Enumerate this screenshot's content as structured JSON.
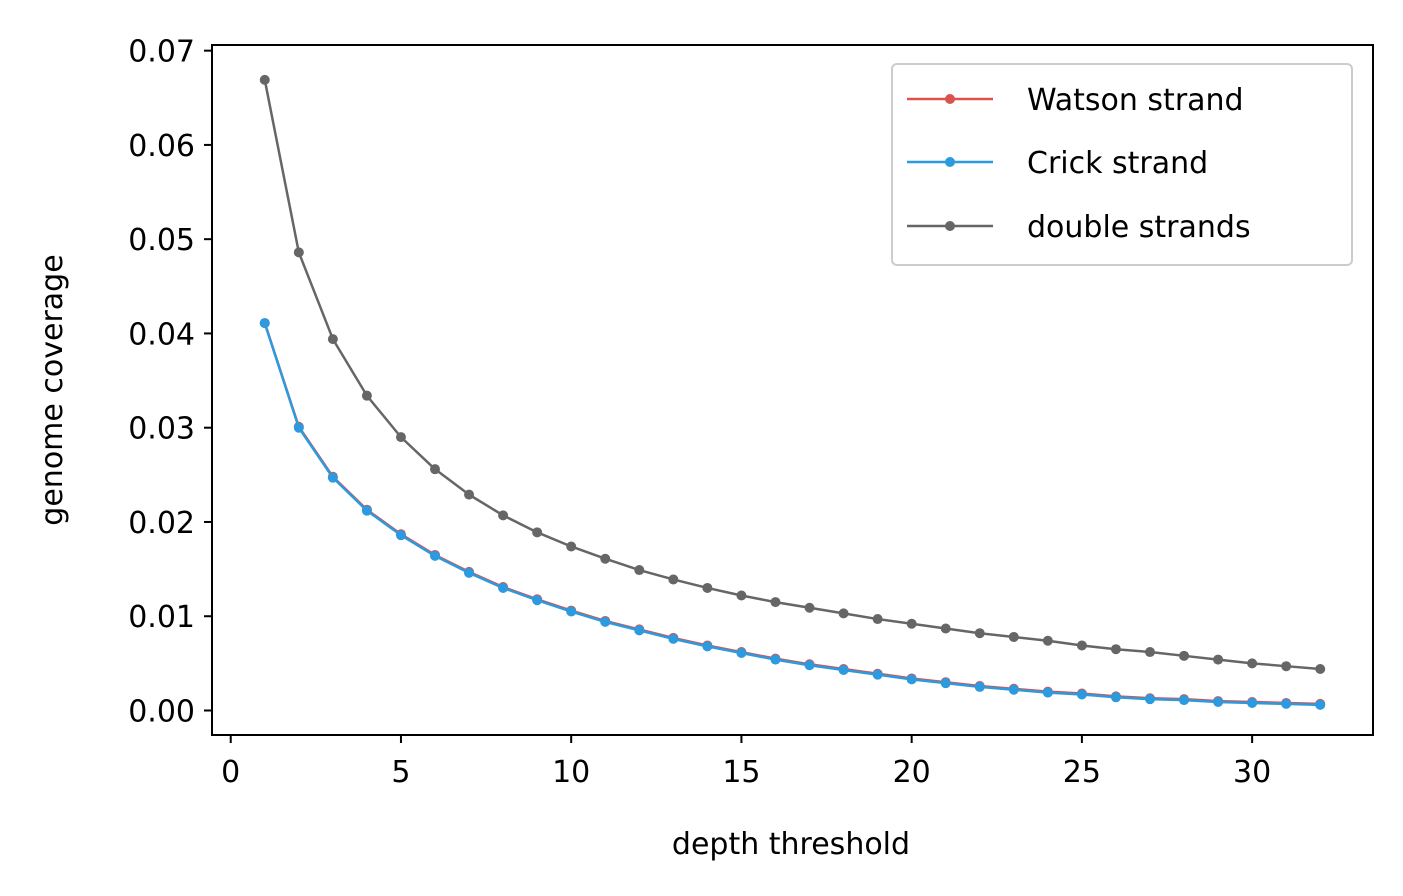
{
  "chart_data": {
    "type": "line",
    "title": "",
    "xlabel": "depth threshold",
    "ylabel": "genome coverage",
    "xlim": [
      -0.55,
      33.55
    ],
    "ylim": [
      -0.0026,
      0.0706
    ],
    "xticks": [
      0,
      5,
      10,
      15,
      20,
      25,
      30
    ],
    "xtick_labels": [
      "0",
      "5",
      "10",
      "15",
      "20",
      "25",
      "30"
    ],
    "yticks": [
      0.0,
      0.01,
      0.02,
      0.03,
      0.04,
      0.05,
      0.06,
      0.07
    ],
    "ytick_labels": [
      "0.00",
      "0.01",
      "0.02",
      "0.03",
      "0.04",
      "0.05",
      "0.06",
      "0.07"
    ],
    "grid": false,
    "legend_position": "top-right",
    "x": [
      1,
      2,
      3,
      4,
      5,
      6,
      7,
      8,
      9,
      10,
      11,
      12,
      13,
      14,
      15,
      16,
      17,
      18,
      19,
      20,
      21,
      22,
      23,
      24,
      25,
      26,
      27,
      28,
      29,
      30,
      31,
      32
    ],
    "series": [
      {
        "name": "Watson strand",
        "color": "#d9534f",
        "values": [
          0.0411,
          0.0301,
          0.0248,
          0.0213,
          0.0187,
          0.0165,
          0.0147,
          0.0131,
          0.0118,
          0.0106,
          0.0095,
          0.0086,
          0.0077,
          0.0069,
          0.0062,
          0.0055,
          0.0049,
          0.0044,
          0.0039,
          0.0034,
          0.003,
          0.0026,
          0.0023,
          0.002,
          0.0018,
          0.0015,
          0.0013,
          0.0012,
          0.001,
          0.0009,
          0.0008,
          0.0007
        ]
      },
      {
        "name": "Crick strand",
        "color": "#2b9ade",
        "values": [
          0.0411,
          0.03,
          0.0247,
          0.0212,
          0.0186,
          0.0164,
          0.0146,
          0.013,
          0.0117,
          0.0105,
          0.0094,
          0.0085,
          0.0076,
          0.0068,
          0.0061,
          0.0054,
          0.0048,
          0.0043,
          0.0038,
          0.0033,
          0.0029,
          0.0025,
          0.0022,
          0.0019,
          0.0017,
          0.0014,
          0.0012,
          0.0011,
          0.0009,
          0.0008,
          0.0007,
          0.0006
        ]
      },
      {
        "name": "double strands",
        "color": "#666666",
        "values": [
          0.0669,
          0.0486,
          0.0394,
          0.0334,
          0.029,
          0.0256,
          0.0229,
          0.0207,
          0.0189,
          0.0174,
          0.0161,
          0.0149,
          0.0139,
          0.013,
          0.0122,
          0.0115,
          0.0109,
          0.0103,
          0.0097,
          0.0092,
          0.0087,
          0.0082,
          0.0078,
          0.0074,
          0.0069,
          0.0065,
          0.0062,
          0.0058,
          0.0054,
          0.005,
          0.0047,
          0.0044
        ]
      }
    ]
  }
}
